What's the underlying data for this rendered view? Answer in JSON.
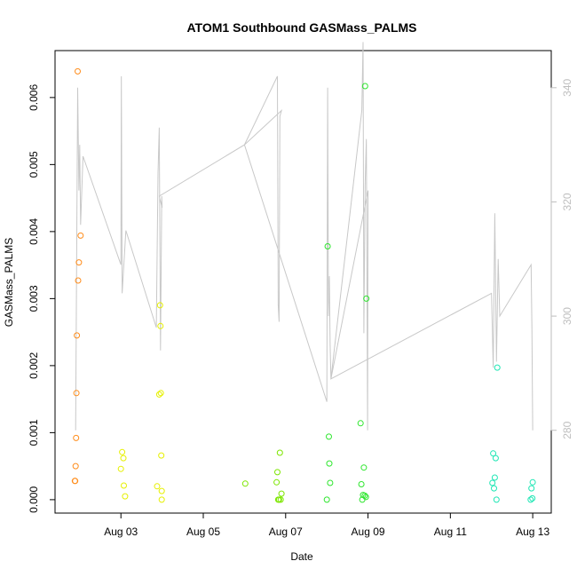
{
  "chart_data": {
    "type": "scatter",
    "title": "ATOM1 Southbound GASMass_PALMS",
    "xlabel": "Date",
    "ylabel": "GASMass_PALMS",
    "y2label": "",
    "x_ticks": [
      "Aug 03",
      "Aug 05",
      "Aug 07",
      "Aug 09",
      "Aug 11",
      "Aug 13"
    ],
    "x_tick_values": [
      3,
      5,
      7,
      9,
      11,
      13
    ],
    "xlim": [
      1.4,
      13.45
    ],
    "y_ticks": [
      "0.000",
      "0.001",
      "0.002",
      "0.003",
      "0.004",
      "0.005",
      "0.006"
    ],
    "y_tick_values": [
      0,
      0.001,
      0.002,
      0.003,
      0.004,
      0.005,
      0.006
    ],
    "ylim": [
      -0.0002,
      0.0067
    ],
    "y2_ticks": [
      "280",
      "300",
      "320",
      "340"
    ],
    "y2_tick_values": [
      280,
      300,
      320,
      340
    ],
    "y2lim": [
      265.5,
      346.5
    ],
    "grid": false,
    "legend": "none",
    "colors": {
      "line": "#c8c8c8",
      "secondary_axis": "#bebebe",
      "axis": "#000000"
    },
    "series": [
      {
        "color": "#ff8c1a",
        "x": [
          1.88,
          1.9,
          1.91,
          1.92,
          1.93,
          1.96,
          1.98,
          2.02,
          1.95,
          1.89
        ],
        "y": [
          0.00028,
          0.0005,
          0.00092,
          0.00159,
          0.00245,
          0.00327,
          0.00354,
          0.00394,
          0.00639,
          0.00028
        ]
      },
      {
        "color": "#e6f000",
        "x": [
          3.0,
          3.03,
          3.06,
          3.07,
          3.1,
          3.88,
          3.93,
          3.95,
          3.96,
          3.97,
          3.98,
          3.99,
          3.99
        ],
        "y": [
          0.00046,
          0.00071,
          0.00062,
          0.00021,
          5e-05,
          0.0002,
          0.00157,
          0.0029,
          0.00259,
          0.00159,
          0.00066,
          0.00013,
          0.0
        ]
      },
      {
        "color": "#7de600",
        "x": [
          6.02,
          6.78,
          6.8,
          6.82,
          6.84,
          6.86,
          6.88,
          6.9
        ],
        "y": [
          0.00024,
          0.00026,
          0.00041,
          0.0,
          0.0,
          0.0007,
          0.0,
          9e-05
        ]
      },
      {
        "color": "#2ee62e",
        "x": [
          8.0,
          8.02,
          8.05,
          8.06,
          8.08,
          8.82,
          8.84,
          8.86,
          8.88,
          8.9,
          8.92,
          8.93,
          8.95,
          8.96
        ],
        "y": [
          0.0,
          0.00378,
          0.00094,
          0.00054,
          0.00025,
          0.00114,
          0.00023,
          0.0,
          7e-05,
          0.00048,
          6e-05,
          0.00617,
          4e-05,
          0.003
        ]
      },
      {
        "color": "#1ee6b4",
        "x": [
          12.02,
          12.04,
          12.06,
          12.08,
          12.1,
          12.12,
          12.14,
          12.95,
          12.97,
          12.99,
          13.0
        ],
        "y": [
          0.00025,
          0.00069,
          0.00017,
          0.00033,
          0.00062,
          0.0,
          0.00197,
          0.0,
          0.00017,
          2e-05,
          0.00026
        ]
      }
    ],
    "line_series": {
      "axis": "secondary",
      "x": [
        1.9,
        1.95,
        1.98,
        2.0,
        2.02,
        2.08,
        3.0,
        3.01,
        3.03,
        3.12,
        3.86,
        3.9,
        3.93,
        3.96,
        3.99,
        4.0,
        3.93,
        6.0,
        6.8,
        6.82,
        6.84,
        6.86,
        6.9,
        6.0,
        8.0,
        8.02,
        8.04,
        8.06,
        8.08,
        8.1,
        8.85,
        8.88,
        8.9,
        8.93,
        8.96,
        8.99,
        9.0,
        8.1,
        12.0,
        12.04,
        12.08,
        12.12,
        12.16,
        12.2,
        12.96,
        12.98,
        13.0
      ],
      "y": [
        280,
        340,
        322,
        330,
        316,
        328,
        309,
        342,
        304,
        315,
        298,
        325,
        333,
        294,
        321,
        319,
        321,
        330,
        342,
        302,
        299,
        335,
        336,
        330,
        285,
        340,
        300,
        307,
        295,
        289,
        336,
        348,
        297,
        323,
        331,
        280,
        322,
        289,
        304,
        291,
        318,
        292,
        310,
        300,
        309,
        298,
        280
      ]
    }
  }
}
